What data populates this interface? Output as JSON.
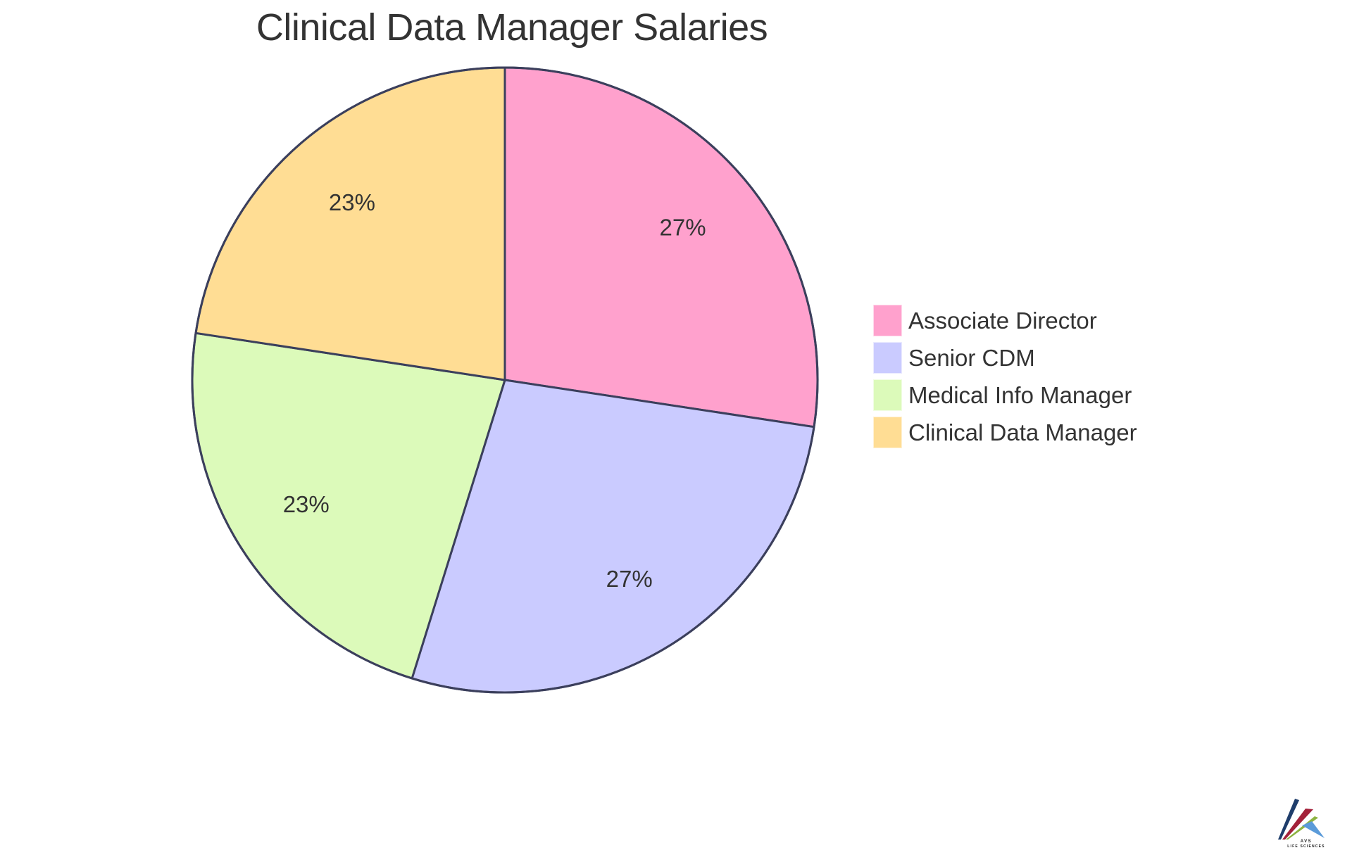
{
  "title": "Clinical Data Manager Salaries",
  "chart_data": {
    "type": "pie",
    "title": "Clinical Data Manager Salaries",
    "categories": [
      "Associate Director",
      "Senior CDM",
      "Medical Info Manager",
      "Clinical Data Manager"
    ],
    "values": [
      27.4,
      27.4,
      22.6,
      22.6
    ],
    "labels": [
      "27%",
      "27%",
      "23%",
      "23%"
    ],
    "colors": [
      "#FFA1CD",
      "#CACBFF",
      "#DCFABA",
      "#FFDD94"
    ],
    "start_angle": "12 o'clock",
    "direction": "clockwise",
    "legend_position": "right",
    "stroke_color": "#3B3F5C"
  },
  "legend": {
    "items": [
      {
        "label": "Associate Director",
        "color": "#FFA1CD"
      },
      {
        "label": "Senior CDM",
        "color": "#CACBFF"
      },
      {
        "label": "Medical Info Manager",
        "color": "#DCFABA"
      },
      {
        "label": "Clinical Data Manager",
        "color": "#FFDD94"
      }
    ]
  },
  "logo": {
    "name": "AVS",
    "subtitle": "LIFE SCIENCES",
    "colors": [
      "#1F3D6B",
      "#A3213A",
      "#8DB341",
      "#5B9BD9"
    ]
  }
}
